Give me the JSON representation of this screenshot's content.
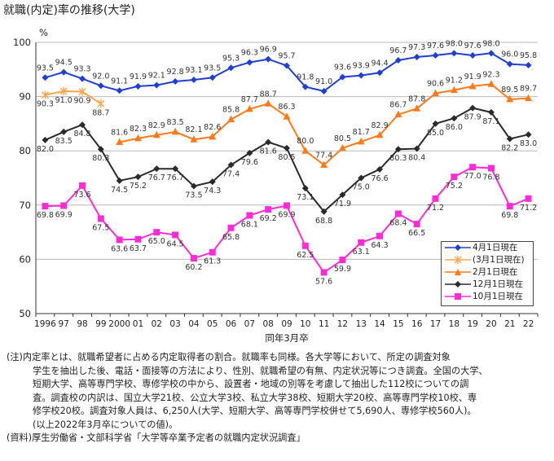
{
  "title": "就職(内定)率の推移(大学)",
  "chart_data": {
    "type": "line",
    "ylabel": "%",
    "xlabel": "同年3月卒",
    "ylim": [
      50,
      100
    ],
    "yticks": [
      50,
      60,
      70,
      80,
      90,
      100
    ],
    "grid": true,
    "legend_position": "bottom-right",
    "categories": [
      "1996",
      "97",
      "98",
      "99",
      "2000",
      "01",
      "02",
      "03",
      "04",
      "05",
      "06",
      "07",
      "08",
      "09",
      "10",
      "11",
      "12",
      "13",
      "14",
      "15",
      "16",
      "17",
      "18",
      "19",
      "20",
      "21",
      "22"
    ],
    "series": [
      {
        "name": "4月1日現在",
        "color": "#1f3fd1",
        "marker": "diamond",
        "values": [
          93.5,
          94.5,
          93.3,
          92.0,
          91.1,
          91.9,
          92.1,
          92.8,
          93.1,
          93.5,
          95.3,
          96.3,
          96.9,
          95.7,
          91.8,
          91.0,
          93.6,
          93.9,
          94.4,
          96.7,
          97.3,
          97.6,
          98.0,
          97.6,
          98.0,
          96.0,
          95.8
        ]
      },
      {
        "name": "(3月1日現在)",
        "color": "#ffa64d",
        "marker": "star",
        "values": [
          90.3,
          91.0,
          90.9,
          88.7,
          null,
          null,
          null,
          null,
          null,
          null,
          null,
          null,
          null,
          null,
          null,
          null,
          null,
          null,
          null,
          null,
          null,
          null,
          null,
          null,
          null,
          null,
          null
        ]
      },
      {
        "name": "2月1日現在",
        "color": "#ff7a1a",
        "marker": "triangle",
        "values": [
          null,
          null,
          null,
          null,
          81.6,
          82.3,
          82.9,
          83.5,
          82.1,
          82.6,
          85.8,
          87.7,
          88.7,
          86.3,
          80.0,
          77.4,
          80.5,
          81.7,
          82.9,
          86.7,
          87.8,
          90.6,
          91.2,
          91.9,
          92.3,
          89.5,
          89.7
        ]
      },
      {
        "name": "12月1日現在",
        "color": "#2a2a2a",
        "marker": "diamond",
        "values": [
          82.0,
          83.5,
          84.8,
          80.3,
          74.5,
          75.2,
          76.7,
          76.7,
          73.5,
          74.3,
          77.4,
          79.6,
          81.6,
          80.5,
          73.1,
          68.8,
          71.9,
          75.0,
          76.6,
          80.3,
          80.4,
          85.0,
          86.0,
          87.9,
          87.1,
          82.2,
          83.0
        ]
      },
      {
        "name": "10月1日現在",
        "color": "#ff2cd5",
        "marker": "square",
        "values": [
          69.8,
          69.9,
          73.6,
          67.5,
          63.6,
          63.7,
          65.0,
          64.5,
          60.2,
          61.3,
          65.8,
          68.1,
          69.2,
          69.9,
          62.5,
          57.6,
          59.9,
          63.1,
          64.3,
          68.4,
          66.5,
          71.2,
          75.2,
          77.0,
          76.8,
          69.8,
          71.2
        ]
      }
    ]
  },
  "notes": {
    "line1": "(注)内定率とは、就職希望者に占める内定取得者の割合。就職率も同様。各大学等において、所定の調査対象",
    "line2": "学生を抽出した後、電話・面接等の方法により、性別、就職希望の有無、内定状況等につき調査。全国の大学、",
    "line3": "短期大学、高等専門学校、専修学校の中から、設置者・地域の別等を考慮して抽出した112校についての調",
    "line4": "査。調査校の内訳は、国立大学21校、公立大学3校、私立大学38校、短期大学20校、高等専門学校10校、専",
    "line5": "修学校20校。調査対象人員は、6,250人(大学、短期大学、高等専門学校併せて5,690人、専修学校560人)。",
    "line6": "(以上2022年3月卒についての値)。",
    "source": "(資料)厚生労働省・文部科学省「大学等卒業予定者の就職内定状況調査」"
  }
}
